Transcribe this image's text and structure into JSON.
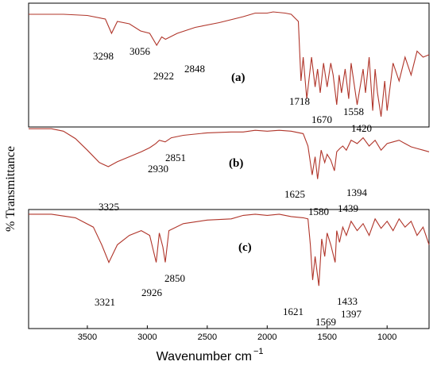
{
  "chart_data": {
    "type": "line",
    "xlabel": "Wavenumber cm",
    "xlabel_sup": "−1",
    "ylabel": "% Transmittance",
    "x_ticks": [
      3500,
      3000,
      2500,
      2000,
      1500,
      1000
    ],
    "x_tick_labels": [
      "3500",
      "3000",
      "2500",
      "2000",
      "1500",
      "1000"
    ],
    "xlim": [
      3990,
      650
    ],
    "x_reversed": true,
    "line_color": "#b0352a",
    "series": [
      {
        "name": "(a)",
        "x": [
          3990,
          3700,
          3500,
          3350,
          3298,
          3250,
          3150,
          3056,
          2980,
          2922,
          2880,
          2848,
          2750,
          2600,
          2400,
          2200,
          2100,
          2000,
          1950,
          1850,
          1800,
          1740,
          1718,
          1700,
          1670,
          1630,
          1600,
          1580,
          1558,
          1530,
          1500,
          1470,
          1450,
          1420,
          1400,
          1380,
          1350,
          1320,
          1300,
          1250,
          1200,
          1180,
          1150,
          1120,
          1100,
          1080,
          1050,
          1020,
          1000,
          950,
          900,
          850,
          800,
          750,
          700,
          650
        ],
        "y": [
          96,
          96,
          95,
          92,
          80,
          90,
          88,
          82,
          80,
          70,
          77,
          75,
          80,
          85,
          89,
          94,
          97,
          97,
          98,
          97,
          96,
          90,
          40,
          60,
          25,
          60,
          35,
          50,
          30,
          55,
          35,
          55,
          45,
          20,
          45,
          30,
          50,
          25,
          55,
          20,
          50,
          30,
          60,
          15,
          50,
          30,
          10,
          40,
          15,
          55,
          40,
          60,
          45,
          65,
          60,
          62
        ]
      },
      {
        "name": "(b)",
        "x": [
          3990,
          3800,
          3700,
          3600,
          3500,
          3400,
          3325,
          3250,
          3150,
          3050,
          2980,
          2930,
          2900,
          2851,
          2800,
          2700,
          2500,
          2300,
          2200,
          2100,
          2000,
          1900,
          1800,
          1700,
          1660,
          1625,
          1600,
          1580,
          1550,
          1520,
          1500,
          1470,
          1439,
          1420,
          1394,
          1370,
          1340,
          1300,
          1250,
          1200,
          1150,
          1100,
          1050,
          1000,
          950,
          900,
          850,
          800,
          750,
          700,
          650
        ],
        "y": [
          96,
          96,
          93,
          84,
          70,
          55,
          50,
          56,
          62,
          68,
          73,
          78,
          82,
          80,
          85,
          88,
          91,
          92,
          92,
          94,
          93,
          94,
          93,
          90,
          75,
          40,
          62,
          35,
          70,
          55,
          65,
          58,
          45,
          68,
          72,
          75,
          70,
          82,
          78,
          85,
          75,
          82,
          70,
          78,
          80,
          82,
          78,
          74,
          72,
          70,
          68
        ]
      },
      {
        "name": "(c)",
        "x": [
          3990,
          3800,
          3600,
          3450,
          3380,
          3321,
          3250,
          3150,
          3050,
          2980,
          2926,
          2900,
          2870,
          2850,
          2820,
          2700,
          2500,
          2300,
          2200,
          2100,
          2000,
          1900,
          1800,
          1700,
          1660,
          1640,
          1621,
          1600,
          1569,
          1545,
          1520,
          1500,
          1470,
          1433,
          1420,
          1397,
          1370,
          1340,
          1300,
          1250,
          1200,
          1150,
          1100,
          1050,
          1000,
          950,
          900,
          850,
          800,
          750,
          700,
          650
        ],
        "y": [
          96,
          96,
          93,
          85,
          70,
          55,
          70,
          78,
          82,
          78,
          55,
          80,
          68,
          55,
          82,
          88,
          91,
          92,
          95,
          96,
          95,
          96,
          94,
          93,
          92,
          70,
          40,
          60,
          35,
          75,
          60,
          80,
          70,
          55,
          82,
          72,
          85,
          78,
          90,
          82,
          88,
          78,
          92,
          84,
          90,
          82,
          92,
          85,
          90,
          78,
          85,
          70
        ]
      }
    ],
    "panel_labels": [
      "(a)",
      "(b)",
      "(c)"
    ],
    "annotations": {
      "a": [
        "3298",
        "3056",
        "2922",
        "2848",
        "1718",
        "1670",
        "1558",
        "1420"
      ],
      "b": [
        "3325",
        "2930",
        "2851",
        "1625",
        "1580",
        "1439",
        "1394"
      ],
      "c": [
        "3321",
        "2926",
        "2850",
        "1621",
        "1569",
        "1433",
        "1397"
      ]
    }
  }
}
